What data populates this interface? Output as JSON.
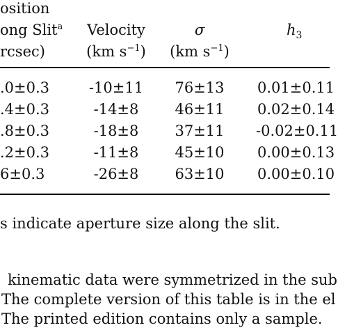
{
  "table": {
    "headers": {
      "position": [
        "osition",
        "ong Slit",
        "rcsec)"
      ],
      "position_sup": "a",
      "velocity": [
        "Velocity",
        "(km s",
        "−1",
        ")"
      ],
      "sigma": [
        "σ",
        "(km s",
        "−1",
        ")"
      ],
      "h3": [
        "h",
        "3"
      ]
    },
    "rows": [
      {
        "position": ".0±0.3",
        "velocity": "-10±11",
        "sigma": "76±13",
        "h3": "0.01±0.11"
      },
      {
        "position": ".4±0.3",
        "velocity": "-14±8",
        "sigma": "46±11",
        "h3": "0.02±0.14"
      },
      {
        "position": ".8±0.3",
        "velocity": "-18±8",
        "sigma": "37±11",
        "h3": "-0.02±0.11"
      },
      {
        "position": ".2±0.3",
        "velocity": "-11±8",
        "sigma": "45±10",
        "h3": "0.00±0.13"
      },
      {
        "position": "6±0.3",
        "velocity": "-26±8",
        "sigma": "63±10",
        "h3": "0.00±0.10"
      }
    ]
  },
  "notes": [
    "s indicate aperture size along the slit.",
    "kinematic data were symmetrized in the sub",
    "The complete version of this table is in the el",
    "The printed edition contains only a sample."
  ]
}
